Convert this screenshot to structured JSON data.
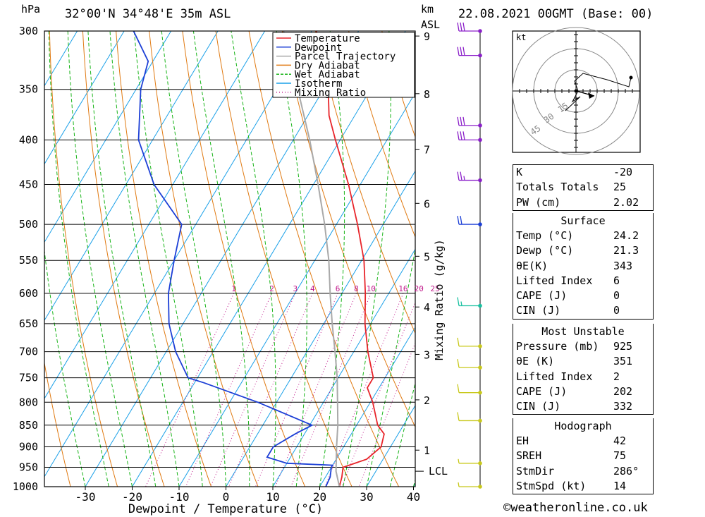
{
  "header": {
    "location": "32°00'N 34°48'E 35m ASL",
    "date": "22.08.2021 00GMT (Base: 00)",
    "hpa_unit": "hPa",
    "km_unit": "km",
    "asl": "ASL"
  },
  "chart_data": {
    "type": "line",
    "subtype": "skew-T log-P diagram",
    "xlabel": "Dewpoint / Temperature (°C)",
    "ylabel": "hPa",
    "mixing_ratio_label": "Mixing Ratio (g/kg)",
    "x_ticks": [
      -30,
      -20,
      -10,
      0,
      10,
      20,
      30,
      40
    ],
    "pressure_levels": [
      300,
      350,
      400,
      450,
      500,
      550,
      600,
      650,
      700,
      750,
      800,
      850,
      900,
      950,
      1000
    ],
    "height_ticks_km": [
      {
        "label": "1",
        "p": 908
      },
      {
        "label": "2",
        "p": 795
      },
      {
        "label": "3",
        "p": 705
      },
      {
        "label": "4",
        "p": 622
      },
      {
        "label": "5",
        "p": 544
      },
      {
        "label": "6",
        "p": 473
      },
      {
        "label": "7",
        "p": 410
      },
      {
        "label": "8",
        "p": 354
      },
      {
        "label": "9",
        "p": 304
      }
    ],
    "lcl_label": "LCL",
    "lcl_pressure": 960,
    "mixing_ratio_values": [
      "1",
      "2",
      "3",
      "4",
      "6",
      "8",
      "10",
      "16",
      "20",
      "25"
    ],
    "legend": [
      {
        "name": "Temperature",
        "color": "#e8242a",
        "style": "solid"
      },
      {
        "name": "Dewpoint",
        "color": "#1c3fd6",
        "style": "solid"
      },
      {
        "name": "Parcel Trajectory",
        "color": "#a9a9a9",
        "style": "solid"
      },
      {
        "name": "Dry Adiabat",
        "color": "#e07a12",
        "style": "solid"
      },
      {
        "name": "Wet Adiabat",
        "color": "#18b418",
        "style": "dashed"
      },
      {
        "name": "Isotherm",
        "color": "#1aa0e8",
        "style": "solid"
      },
      {
        "name": "Mixing Ratio",
        "color": "#c0178a",
        "style": "dotted"
      }
    ],
    "series": [
      {
        "name": "Temperature",
        "points": [
          [
            1000,
            24.2
          ],
          [
            975,
            23.5
          ],
          [
            950,
            22.5
          ],
          [
            930,
            26.5
          ],
          [
            900,
            28.0
          ],
          [
            870,
            27.0
          ],
          [
            850,
            24.5
          ],
          [
            800,
            20.5
          ],
          [
            770,
            17.5
          ],
          [
            750,
            17.5
          ],
          [
            700,
            13.0
          ],
          [
            650,
            8.8
          ],
          [
            600,
            5.0
          ],
          [
            550,
            0.5
          ],
          [
            500,
            -5.5
          ],
          [
            450,
            -12.5
          ],
          [
            400,
            -21.0
          ],
          [
            375,
            -25.5
          ],
          [
            350,
            -29.0
          ],
          [
            325,
            -33.5
          ],
          [
            300,
            -39.0
          ]
        ]
      },
      {
        "name": "Dewpoint",
        "points": [
          [
            1000,
            21.3
          ],
          [
            975,
            21.0
          ],
          [
            950,
            20.0
          ],
          [
            945,
            20.0
          ],
          [
            940,
            10.0
          ],
          [
            925,
            5.0
          ],
          [
            900,
            5.0
          ],
          [
            870,
            8.0
          ],
          [
            850,
            10.5
          ],
          [
            800,
            -4.0
          ],
          [
            760,
            -18.0
          ],
          [
            750,
            -22.0
          ],
          [
            700,
            -28.0
          ],
          [
            650,
            -33.0
          ],
          [
            600,
            -37.0
          ],
          [
            550,
            -40.0
          ],
          [
            500,
            -43.0
          ],
          [
            450,
            -54.0
          ],
          [
            400,
            -63.0
          ],
          [
            350,
            -69.0
          ],
          [
            325,
            -71.0
          ],
          [
            300,
            -78.0
          ]
        ]
      },
      {
        "name": "Parcel Trajectory",
        "points": [
          [
            1000,
            24.2
          ],
          [
            960,
            21.5
          ],
          [
            900,
            18.5
          ],
          [
            850,
            16.0
          ],
          [
            800,
            13.0
          ],
          [
            750,
            9.8
          ],
          [
            700,
            6.0
          ],
          [
            650,
            1.8
          ],
          [
            600,
            -2.5
          ],
          [
            550,
            -7.0
          ],
          [
            500,
            -12.5
          ],
          [
            450,
            -19.0
          ],
          [
            400,
            -26.5
          ],
          [
            350,
            -35.5
          ],
          [
            300,
            -46.0
          ]
        ]
      }
    ],
    "wind_barbs": [
      {
        "p": 300,
        "speed": 30,
        "color": "#8a1fc9"
      },
      {
        "p": 320,
        "speed": 30,
        "color": "#8a1fc9"
      },
      {
        "p": 385,
        "speed": 30,
        "color": "#8a1fc9"
      },
      {
        "p": 400,
        "speed": 30,
        "color": "#8a1fc9"
      },
      {
        "p": 445,
        "speed": 25,
        "color": "#8a1fc9"
      },
      {
        "p": 500,
        "speed": 20,
        "color": "#1c3fd6"
      },
      {
        "p": 620,
        "speed": 15,
        "color": "#18c0a0"
      },
      {
        "p": 690,
        "speed": 10,
        "color": "#c8c81a"
      },
      {
        "p": 730,
        "speed": 10,
        "color": "#c8c81a"
      },
      {
        "p": 780,
        "speed": 10,
        "color": "#c8c81a"
      },
      {
        "p": 840,
        "speed": 10,
        "color": "#c8c81a"
      },
      {
        "p": 940,
        "speed": 5,
        "color": "#c8c81a"
      },
      {
        "p": 1000,
        "speed": 5,
        "color": "#c8c81a"
      }
    ]
  },
  "hodograph": {
    "unit": "kt",
    "ring_labels": [
      "15",
      "30",
      "45"
    ]
  },
  "indices": {
    "top": [
      {
        "label": "K",
        "value": "-20"
      },
      {
        "label": "Totals Totals",
        "value": "25"
      },
      {
        "label": "PW (cm)",
        "value": "2.02"
      }
    ],
    "surface": {
      "title": "Surface",
      "rows": [
        {
          "label": "Temp (°C)",
          "value": "24.2"
        },
        {
          "label": "Dewp (°C)",
          "value": "21.3"
        },
        {
          "label": "θE(K)",
          "value": "343"
        },
        {
          "label": "Lifted Index",
          "value": "6"
        },
        {
          "label": "CAPE (J)",
          "value": "0"
        },
        {
          "label": "CIN (J)",
          "value": "0"
        }
      ]
    },
    "most_unstable": {
      "title": "Most Unstable",
      "rows": [
        {
          "label": "Pressure (mb)",
          "value": "925"
        },
        {
          "label": "θE (K)",
          "value": "351"
        },
        {
          "label": "Lifted Index",
          "value": "2"
        },
        {
          "label": "CAPE (J)",
          "value": "202"
        },
        {
          "label": "CIN (J)",
          "value": "332"
        }
      ]
    },
    "hodograph": {
      "title": "Hodograph",
      "rows": [
        {
          "label": "EH",
          "value": "42"
        },
        {
          "label": "SREH",
          "value": "75"
        },
        {
          "label": "StmDir",
          "value": "286°"
        },
        {
          "label": "StmSpd (kt)",
          "value": "14"
        }
      ]
    }
  },
  "watermark": "©weatheronline.co.uk"
}
